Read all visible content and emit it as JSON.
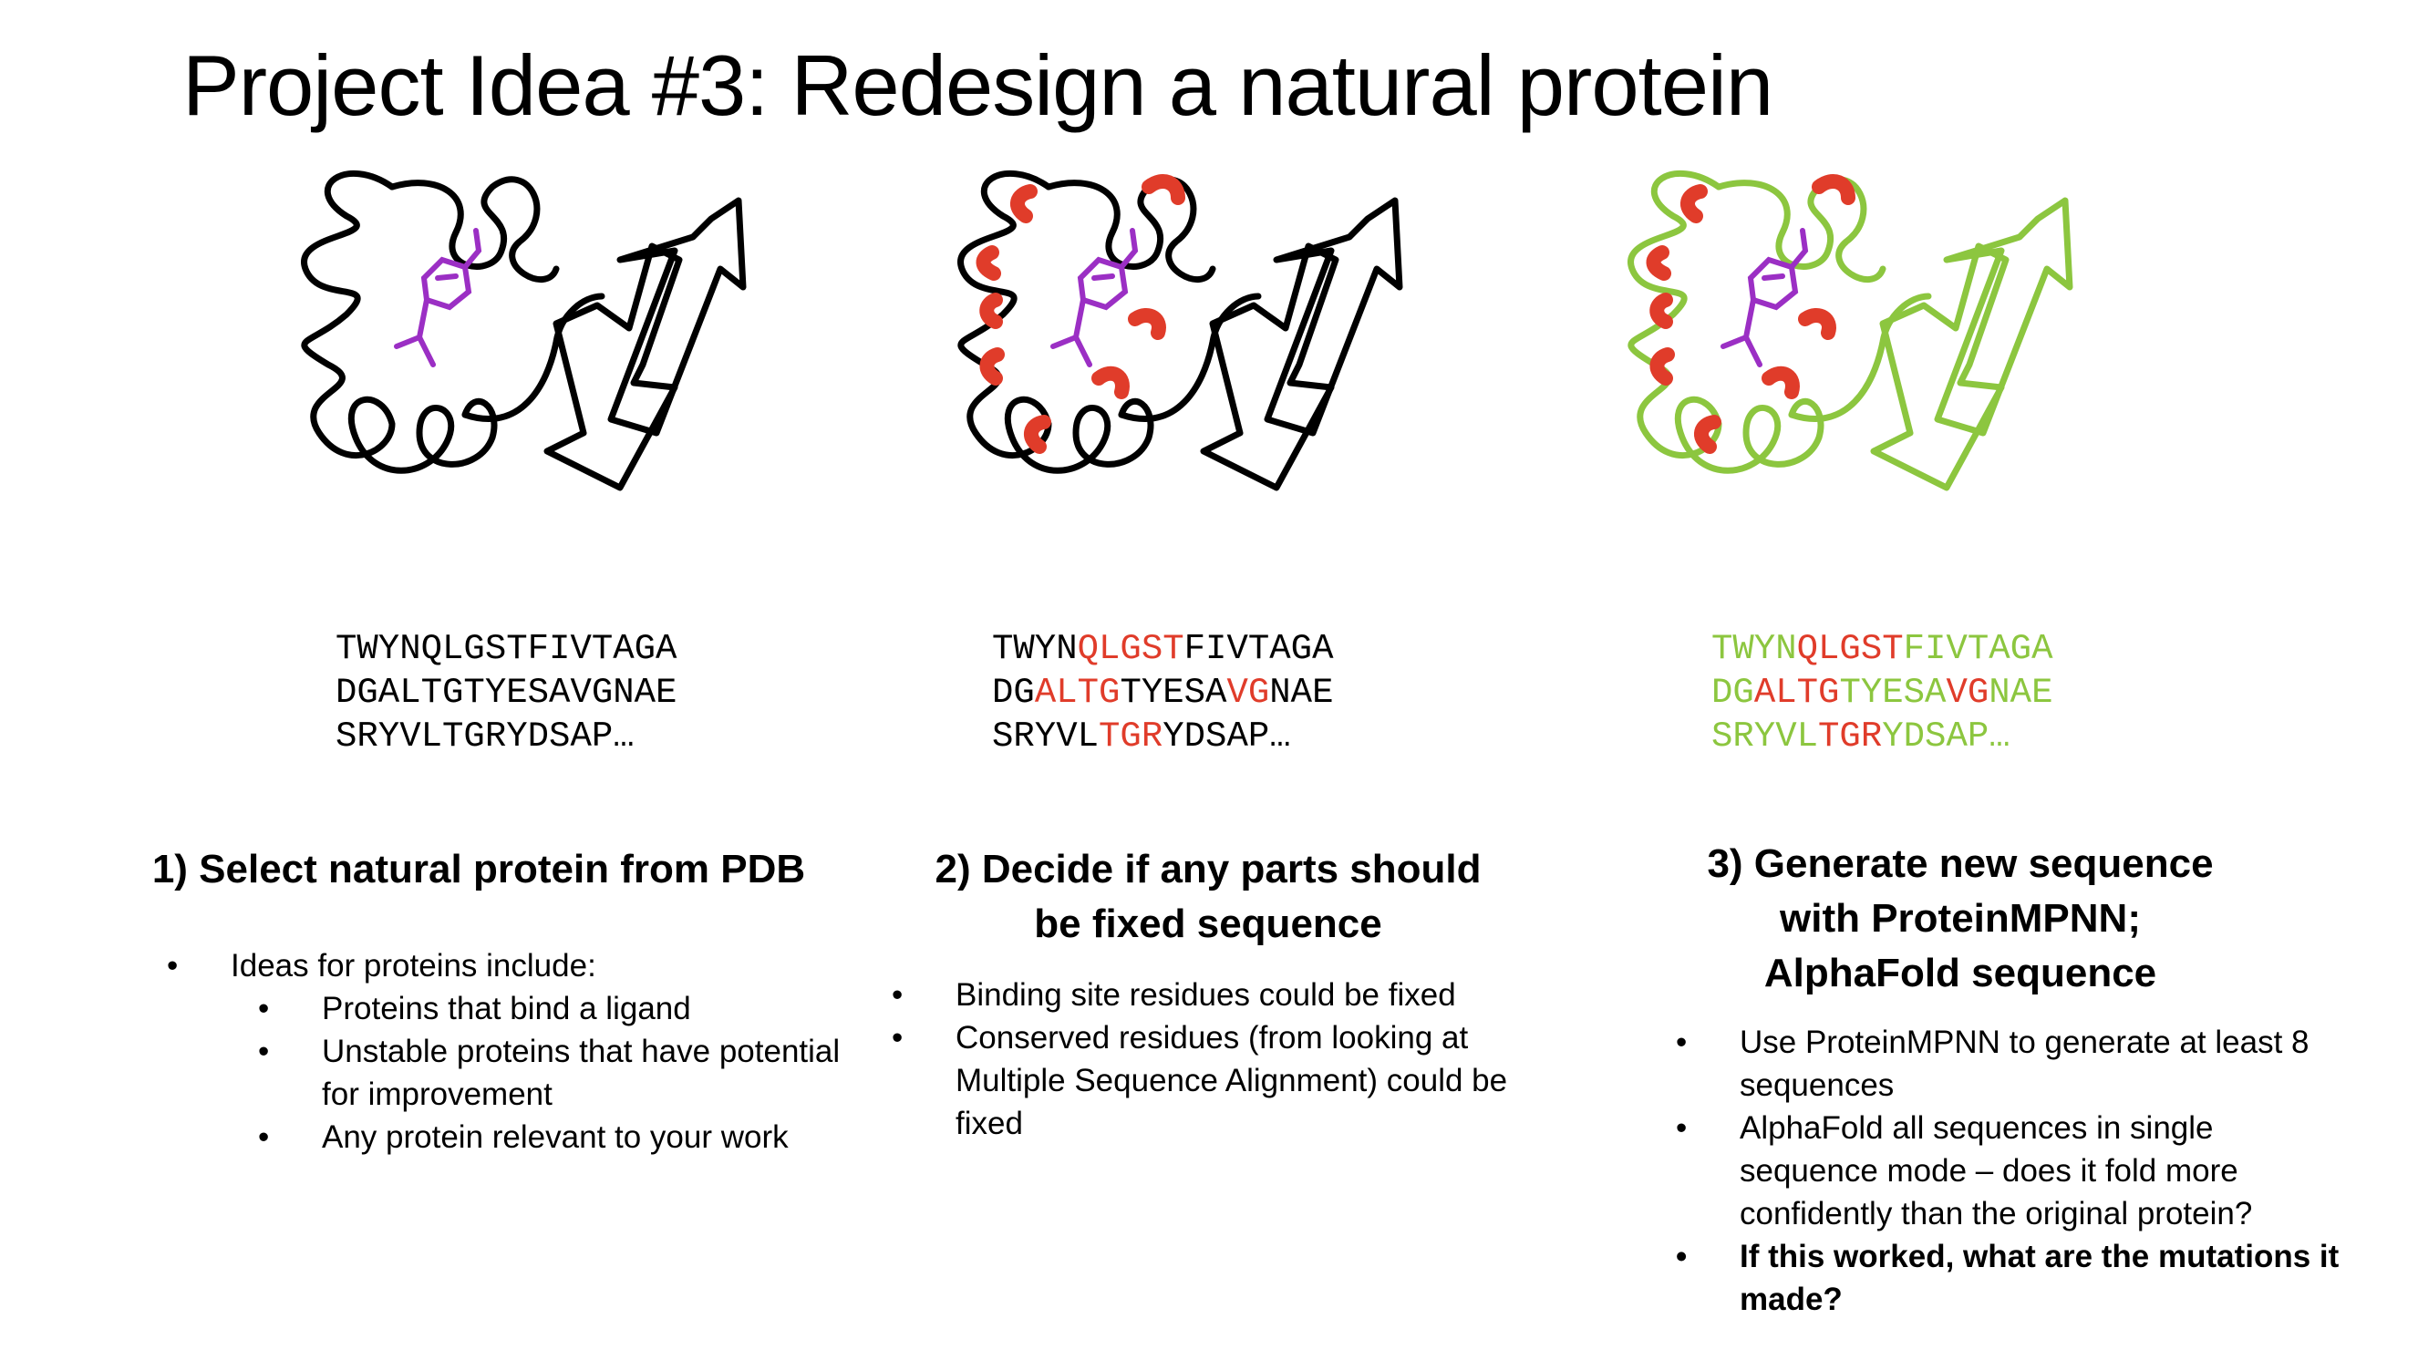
{
  "title": "Project Idea #3: Redesign a natural protein",
  "colors": {
    "outline_black": "#000000",
    "ligand": "#9b2fc4",
    "fixed_residue": "#e03c2a",
    "designed_green": "#8cc63f"
  },
  "panels": [
    {
      "sequence_lines": [
        [
          {
            "t": "TWYNQLGSTFIVTAGA",
            "c": "#000000"
          }
        ],
        [
          {
            "t": "DGALTGTYESAVGNAE",
            "c": "#000000"
          }
        ],
        [
          {
            "t": "SRYVLTGRYDSAP…",
            "c": "#000000"
          }
        ]
      ],
      "heading_lines": [
        "1) Select natural protein from PDB"
      ],
      "bullets": [
        {
          "text": "Ideas for proteins include:",
          "level": 0
        },
        {
          "text": "Proteins that bind a ligand",
          "level": 1
        },
        {
          "text": "Unstable proteins that have potential for improvement",
          "level": 1
        },
        {
          "text": "Any protein relevant to your work",
          "level": 1
        }
      ]
    },
    {
      "sequence_lines": [
        [
          {
            "t": "TWYN",
            "c": "#000000"
          },
          {
            "t": "QLGST",
            "c": "#e03c2a"
          },
          {
            "t": "FIVTAGA",
            "c": "#000000"
          }
        ],
        [
          {
            "t": "DG",
            "c": "#000000"
          },
          {
            "t": "ALTG",
            "c": "#e03c2a"
          },
          {
            "t": "TYESA",
            "c": "#000000"
          },
          {
            "t": "VG",
            "c": "#e03c2a"
          },
          {
            "t": "NAE",
            "c": "#000000"
          }
        ],
        [
          {
            "t": "SRYVL",
            "c": "#000000"
          },
          {
            "t": "TGR",
            "c": "#e03c2a"
          },
          {
            "t": "YDSAP…",
            "c": "#000000"
          }
        ]
      ],
      "heading_lines": [
        "2) Decide if any parts should",
        "be fixed sequence"
      ],
      "bullets": [
        {
          "text": "Binding site residues could be fixed",
          "level": 0
        },
        {
          "text": "Conserved residues (from looking at Multiple Sequence Alignment) could be fixed",
          "level": 0
        }
      ]
    },
    {
      "sequence_lines": [
        [
          {
            "t": "TWYN",
            "c": "#8cc63f"
          },
          {
            "t": "QLGST",
            "c": "#e03c2a"
          },
          {
            "t": "FIVTAGA",
            "c": "#8cc63f"
          }
        ],
        [
          {
            "t": "DG",
            "c": "#8cc63f"
          },
          {
            "t": "ALTG",
            "c": "#e03c2a"
          },
          {
            "t": "TYESA",
            "c": "#8cc63f"
          },
          {
            "t": "VG",
            "c": "#e03c2a"
          },
          {
            "t": "NAE",
            "c": "#8cc63f"
          }
        ],
        [
          {
            "t": "SRYVL",
            "c": "#8cc63f"
          },
          {
            "t": "TGR",
            "c": "#e03c2a"
          },
          {
            "t": "YDSAP…",
            "c": "#8cc63f"
          }
        ]
      ],
      "heading_lines": [
        "3) Generate new sequence",
        "with ProteinMPNN;",
        "AlphaFold sequence"
      ],
      "bullets": [
        {
          "text": "Use ProteinMPNN to generate at least 8 sequences",
          "level": 0
        },
        {
          "text": "AlphaFold all sequences in single sequence mode – does it fold more confidently than the original protein?",
          "level": 0
        },
        {
          "text": "If this worked, what are the mutations it made?",
          "level": 0,
          "bold": true
        }
      ]
    }
  ]
}
